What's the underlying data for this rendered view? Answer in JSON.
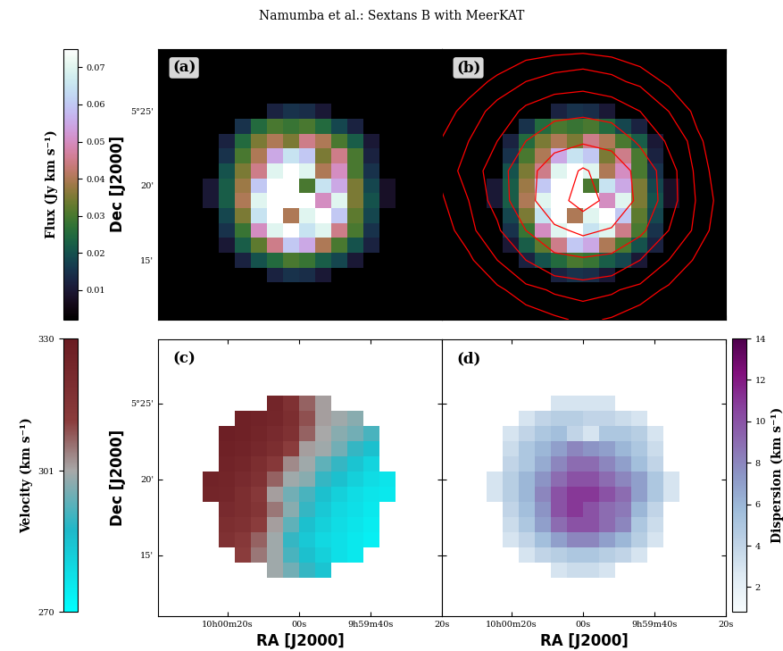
{
  "header": "Namumba et al.: Sextans B with MeerKAT",
  "chart_data": [
    {
      "type": "heatmap",
      "panel_label": "(a)",
      "tick_labels": "y",
      "ylabel": "Dec [J2000]",
      "xlim": [
        99.5,
        20
      ],
      "ylim": [
        11,
        29.2
      ],
      "xticks": [
        {
          "value": 80,
          "label": "10h00m20s"
        },
        {
          "value": 60,
          "label": "00s"
        },
        {
          "value": 40,
          "label": "9h59m40s"
        },
        {
          "value": 20,
          "label": "20s"
        }
      ],
      "yticks": [
        {
          "value": 15,
          "label": "15'"
        },
        {
          "value": 20,
          "label": "20'"
        },
        {
          "value": 25,
          "label": "5°25'"
        }
      ],
      "clim": [
        0.002,
        0.075
      ],
      "colorbar": {
        "label": "Flux (Jy km s⁻¹)",
        "ticks": [
          0.01,
          0.02,
          0.03,
          0.04,
          0.05,
          0.06,
          0.07
        ]
      },
      "x": [
        84.75,
        80.25,
        75.75,
        71.25,
        66.75,
        62.25,
        57.75,
        53.25,
        48.75,
        44.25,
        39.75,
        35.25
      ],
      "y": [
        14,
        15,
        16,
        17,
        18,
        19,
        20,
        21,
        22,
        23,
        24,
        25
      ],
      "values": [
        [
          null,
          null,
          null,
          null,
          0.012,
          0.015,
          0.014,
          0.01,
          null,
          null,
          null,
          null
        ],
        [
          null,
          null,
          0.012,
          0.02,
          0.025,
          0.03,
          0.028,
          0.022,
          0.018,
          0.01,
          null,
          null
        ],
        [
          null,
          0.01,
          0.022,
          0.032,
          0.045,
          0.06,
          0.055,
          0.04,
          0.03,
          0.02,
          0.012,
          null
        ],
        [
          null,
          0.015,
          0.028,
          0.05,
          0.07,
          0.075,
          0.065,
          0.07,
          0.045,
          0.03,
          0.015,
          null
        ],
        [
          null,
          0.018,
          0.035,
          0.065,
          0.075,
          0.04,
          0.07,
          0.075,
          0.06,
          0.032,
          0.018,
          null
        ],
        [
          0.01,
          0.022,
          0.04,
          0.07,
          0.075,
          0.075,
          0.075,
          0.05,
          0.07,
          0.035,
          0.02,
          0.008
        ],
        [
          0.01,
          0.022,
          0.038,
          0.06,
          0.075,
          0.075,
          0.03,
          0.065,
          0.055,
          0.035,
          0.018,
          0.008
        ],
        [
          null,
          0.02,
          0.035,
          0.045,
          0.07,
          0.075,
          0.07,
          0.04,
          0.05,
          0.03,
          0.015,
          null
        ],
        [
          null,
          0.015,
          0.03,
          0.04,
          0.055,
          0.065,
          0.06,
          0.035,
          0.045,
          0.03,
          0.012,
          null
        ],
        [
          null,
          0.012,
          0.025,
          0.035,
          0.04,
          0.035,
          0.045,
          0.04,
          0.03,
          0.022,
          0.01,
          null
        ],
        [
          null,
          null,
          0.015,
          0.025,
          0.03,
          0.028,
          0.03,
          0.025,
          0.018,
          0.012,
          null,
          null
        ],
        [
          null,
          null,
          null,
          null,
          0.012,
          0.015,
          0.014,
          0.01,
          null,
          null,
          null,
          null
        ]
      ]
    },
    {
      "type": "heatmap",
      "panel_label": "(b)",
      "tick_labels": false,
      "xlim": [
        99.5,
        20
      ],
      "ylim": [
        11,
        29.2
      ],
      "xticks": [
        80,
        60,
        40,
        20
      ],
      "yticks": [
        15,
        20,
        25
      ],
      "clim": [
        0.002,
        0.075
      ],
      "x": [
        84.75,
        80.25,
        75.75,
        71.25,
        66.75,
        62.25,
        57.75,
        53.25,
        48.75,
        44.25,
        39.75,
        35.25
      ],
      "y": [
        14,
        15,
        16,
        17,
        18,
        19,
        20,
        21,
        22,
        23,
        24,
        25
      ],
      "values": [
        [
          null,
          null,
          null,
          null,
          0.012,
          0.015,
          0.014,
          0.01,
          null,
          null,
          null,
          null
        ],
        [
          null,
          null,
          0.012,
          0.02,
          0.025,
          0.03,
          0.028,
          0.022,
          0.018,
          0.01,
          null,
          null
        ],
        [
          null,
          0.01,
          0.022,
          0.032,
          0.045,
          0.06,
          0.055,
          0.04,
          0.03,
          0.02,
          0.012,
          null
        ],
        [
          null,
          0.015,
          0.028,
          0.05,
          0.07,
          0.075,
          0.065,
          0.07,
          0.045,
          0.03,
          0.015,
          null
        ],
        [
          null,
          0.018,
          0.035,
          0.065,
          0.075,
          0.04,
          0.07,
          0.075,
          0.06,
          0.032,
          0.018,
          null
        ],
        [
          0.01,
          0.022,
          0.04,
          0.07,
          0.075,
          0.075,
          0.075,
          0.05,
          0.07,
          0.035,
          0.02,
          0.008
        ],
        [
          0.01,
          0.022,
          0.038,
          0.06,
          0.075,
          0.075,
          0.03,
          0.065,
          0.055,
          0.035,
          0.018,
          0.008
        ],
        [
          null,
          0.02,
          0.035,
          0.045,
          0.07,
          0.075,
          0.07,
          0.04,
          0.05,
          0.03,
          0.015,
          null
        ],
        [
          null,
          0.015,
          0.03,
          0.04,
          0.055,
          0.065,
          0.06,
          0.035,
          0.045,
          0.03,
          0.012,
          null
        ],
        [
          null,
          0.012,
          0.025,
          0.035,
          0.04,
          0.035,
          0.045,
          0.04,
          0.03,
          0.022,
          0.01,
          null
        ],
        [
          null,
          null,
          0.015,
          0.025,
          0.03,
          0.028,
          0.03,
          0.025,
          0.018,
          0.012,
          null,
          null
        ],
        [
          null,
          null,
          null,
          null,
          0.012,
          0.015,
          0.014,
          0.01,
          null,
          null,
          null,
          null
        ]
      ],
      "contours": {
        "color": "red",
        "levels": [
          1,
          2,
          4,
          8,
          16,
          32
        ],
        "x": [
          100,
          92,
          84,
          76,
          68,
          60,
          52,
          44,
          36,
          28,
          20
        ],
        "y": [
          11,
          13,
          15,
          17,
          19,
          21,
          23,
          25,
          27,
          29
        ],
        "values": [
          [
            0,
            0,
            0.2,
            0.5,
            0.8,
            1.2,
            0.9,
            0.5,
            0.2,
            0,
            0
          ],
          [
            0,
            0.3,
            0.8,
            1.5,
            2.2,
            2.5,
            2.2,
            1.5,
            0.8,
            0.3,
            0
          ],
          [
            0.2,
            0.8,
            2,
            4,
            6,
            7,
            6,
            4,
            2,
            0.8,
            0.2
          ],
          [
            0.5,
            1.5,
            3.5,
            8,
            14,
            18,
            15,
            9,
            4,
            1.5,
            0.3
          ],
          [
            0.8,
            2,
            5,
            12,
            24,
            40,
            26,
            13,
            5,
            1.8,
            0.4
          ],
          [
            1.2,
            2.5,
            5.5,
            12,
            22,
            34,
            24,
            12,
            5,
            1.5,
            0.3
          ],
          [
            1,
            2,
            4,
            8,
            12,
            14,
            12,
            7,
            3.5,
            1.2,
            0.2
          ],
          [
            0.6,
            1.3,
            2.5,
            4.5,
            6,
            6.5,
            5.5,
            4,
            2,
            0.7,
            0
          ],
          [
            0.2,
            0.6,
            1.2,
            2,
            2.5,
            2.8,
            2.4,
            1.6,
            0.8,
            0.2,
            0
          ],
          [
            0,
            0.1,
            0.3,
            0.6,
            0.8,
            0.9,
            0.7,
            0.4,
            0.2,
            0,
            0
          ]
        ]
      }
    },
    {
      "type": "heatmap",
      "panel_label": "(c)",
      "xlabel": "RA [J2000]",
      "ylabel": "Dec [J2000]",
      "xlim": [
        99.5,
        20
      ],
      "ylim": [
        11,
        29.2
      ],
      "xticks": [
        {
          "value": 80,
          "label": "10h00m20s"
        },
        {
          "value": 60,
          "label": "00s"
        },
        {
          "value": 40,
          "label": "9h59m40s"
        },
        {
          "value": 20,
          "label": "20s"
        }
      ],
      "yticks": [
        {
          "value": 15,
          "label": "15'"
        },
        {
          "value": 20,
          "label": "20'"
        },
        {
          "value": 25,
          "label": "5°25'"
        }
      ],
      "clim": [
        270,
        330
      ],
      "colorbar": {
        "label": "Velocity (km s⁻¹)",
        "ticks": [
          270,
          301,
          330
        ]
      },
      "x": [
        84.75,
        80.25,
        75.75,
        71.25,
        66.75,
        62.25,
        57.75,
        53.25,
        48.75,
        44.25,
        39.75,
        35.25
      ],
      "y": [
        14,
        15,
        16,
        17,
        18,
        19,
        20,
        21,
        22,
        23,
        24,
        25
      ],
      "values": [
        [
          null,
          null,
          null,
          null,
          300,
          296,
          290,
          285,
          null,
          null,
          null,
          null
        ],
        [
          null,
          null,
          312,
          306,
          300,
          292,
          286,
          282,
          278,
          276,
          null,
          null
        ],
        [
          null,
          318,
          314,
          308,
          300,
          290,
          284,
          280,
          278,
          276,
          274,
          null
        ],
        [
          null,
          320,
          318,
          312,
          302,
          294,
          286,
          282,
          279,
          277,
          275,
          null
        ],
        [
          null,
          322,
          320,
          316,
          306,
          298,
          290,
          284,
          280,
          278,
          276,
          null
        ],
        [
          325,
          324,
          320,
          314,
          302,
          296,
          292,
          286,
          282,
          279,
          277,
          276
        ],
        [
          326,
          325,
          322,
          318,
          308,
          300,
          298,
          290,
          286,
          282,
          279,
          277
        ],
        [
          null,
          326,
          324,
          320,
          314,
          304,
          300,
          294,
          290,
          285,
          281,
          null
        ],
        [
          null,
          327,
          326,
          323,
          320,
          312,
          302,
          300,
          296,
          290,
          286,
          null
        ],
        [
          null,
          328,
          327,
          325,
          322,
          318,
          308,
          301,
          298,
          296,
          292,
          null
        ],
        [
          null,
          null,
          327,
          326,
          324,
          320,
          310,
          302,
          300,
          298,
          null,
          null
        ],
        [
          null,
          null,
          null,
          null,
          325,
          318,
          308,
          302,
          null,
          null,
          null,
          null
        ]
      ]
    },
    {
      "type": "heatmap",
      "panel_label": "(d)",
      "tick_labels": "x",
      "xlabel": "RA [J2000]",
      "xlim": [
        99.5,
        20
      ],
      "ylim": [
        11,
        29.2
      ],
      "xticks": [
        {
          "value": 80,
          "label": "10h00m20s"
        },
        {
          "value": 60,
          "label": "00s"
        },
        {
          "value": 40,
          "label": "9h59m40s"
        },
        {
          "value": 20,
          "label": "20s"
        }
      ],
      "yticks": [
        15,
        20,
        25
      ],
      "clim": [
        0.8,
        14
      ],
      "colorbar": {
        "label": "Dispersion (km s⁻¹)",
        "ticks": [
          2,
          4,
          6,
          8,
          10,
          12,
          14
        ]
      },
      "x": [
        84.75,
        80.25,
        75.75,
        71.25,
        66.75,
        62.25,
        57.75,
        53.25,
        48.75,
        44.25,
        39.75,
        35.25
      ],
      "y": [
        14,
        15,
        16,
        17,
        18,
        19,
        20,
        21,
        22,
        23,
        24,
        25
      ],
      "values": [
        [
          null,
          null,
          null,
          null,
          3,
          3.5,
          3.5,
          3,
          null,
          null,
          null,
          null
        ],
        [
          null,
          null,
          3,
          4,
          4.5,
          5,
          5,
          4.5,
          4,
          3,
          null,
          null
        ],
        [
          null,
          3,
          4,
          5.5,
          7,
          8,
          8,
          7,
          6,
          4.5,
          3,
          null
        ],
        [
          null,
          3.5,
          5,
          7,
          9,
          10,
          10,
          9,
          8,
          5,
          3.5,
          null
        ],
        [
          null,
          4,
          5.5,
          7.5,
          10,
          11,
          10,
          9,
          8.5,
          6,
          4,
          null
        ],
        [
          3,
          4.5,
          6,
          8,
          10,
          11,
          11,
          10,
          9,
          7,
          5,
          3
        ],
        [
          3,
          4.5,
          6,
          7.5,
          9,
          10,
          10,
          9,
          8,
          7,
          5,
          3
        ],
        [
          null,
          4,
          5,
          6.5,
          8,
          9,
          9,
          8,
          7,
          5.5,
          4,
          null
        ],
        [
          null,
          3.5,
          5,
          6,
          7,
          8,
          7.5,
          7,
          6,
          5,
          3.5,
          null
        ],
        [
          null,
          3,
          4,
          5,
          5.5,
          4,
          3,
          5,
          5,
          4.5,
          3,
          null
        ],
        [
          null,
          null,
          3,
          4,
          4.5,
          4.5,
          4,
          4,
          3.5,
          3,
          null,
          null
        ],
        [
          null,
          null,
          null,
          null,
          3,
          3,
          3,
          3,
          null,
          null,
          null,
          null
        ]
      ]
    }
  ]
}
